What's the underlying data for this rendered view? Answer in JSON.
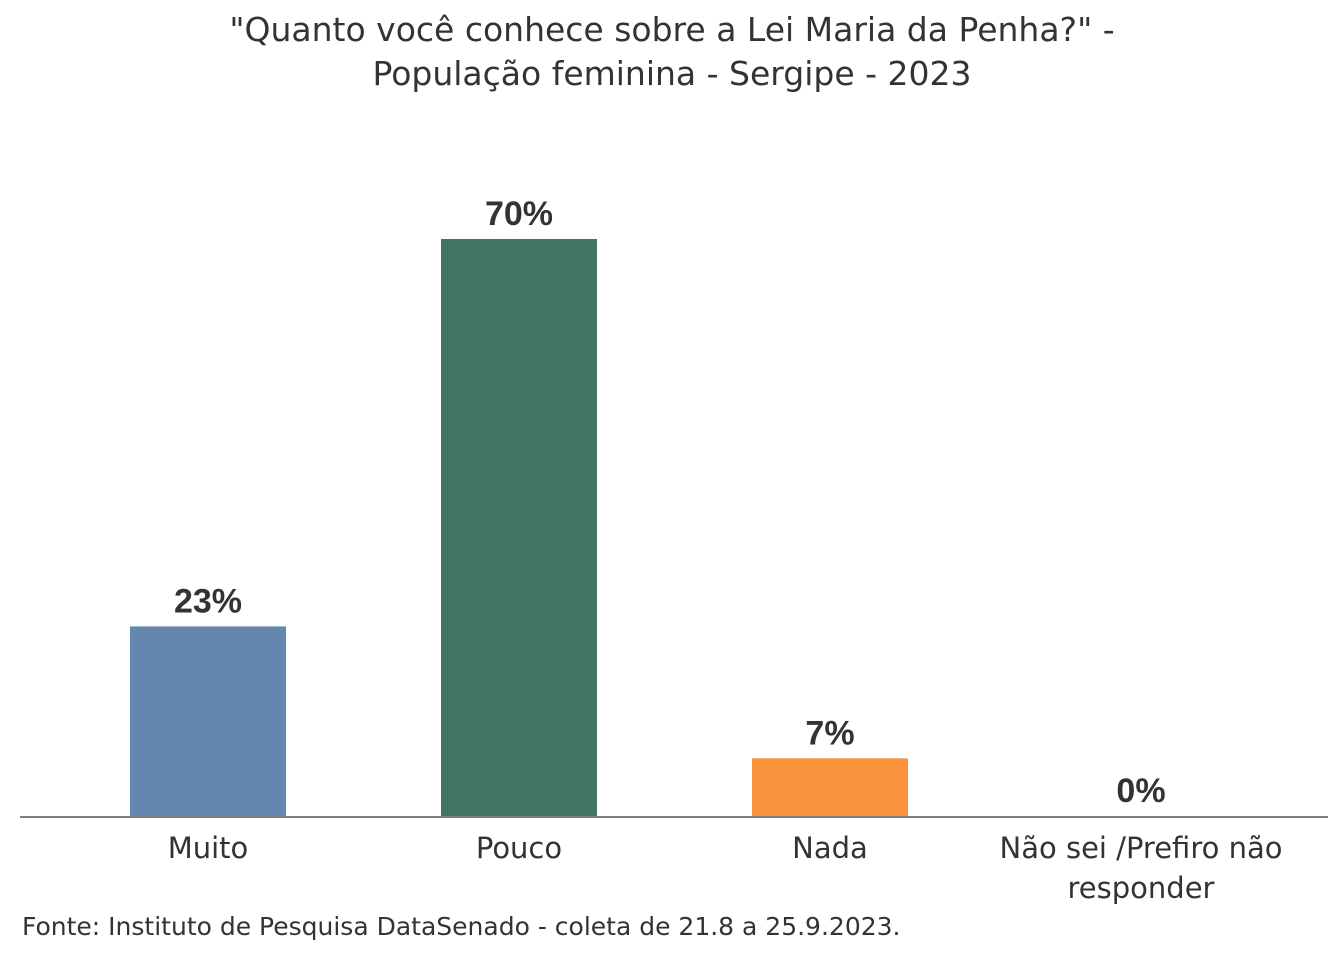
{
  "chart_data": {
    "type": "bar",
    "title_line1": "\"Quanto você conhece sobre a Lei Maria da Penha?\" -",
    "title_line2": "População feminina - Sergipe - 2023",
    "categories": [
      [
        "Muito"
      ],
      [
        "Pouco"
      ],
      [
        "Nada"
      ],
      [
        "Não sei /Prefiro não",
        "responder"
      ]
    ],
    "values": [
      23,
      70,
      7,
      0
    ],
    "data_labels": [
      "23%",
      "70%",
      "7%",
      "0%"
    ],
    "colors": [
      "#6587af",
      "#447462",
      "#fb923c",
      "#ffffff"
    ],
    "xlabel": "",
    "ylabel": "",
    "ylim": [
      0,
      70
    ],
    "grid": false,
    "legend": "none",
    "axis_color": "#808080"
  },
  "source": "Fonte: Instituto de Pesquisa DataSenado - coleta de 21.8 a 25.9.2023."
}
